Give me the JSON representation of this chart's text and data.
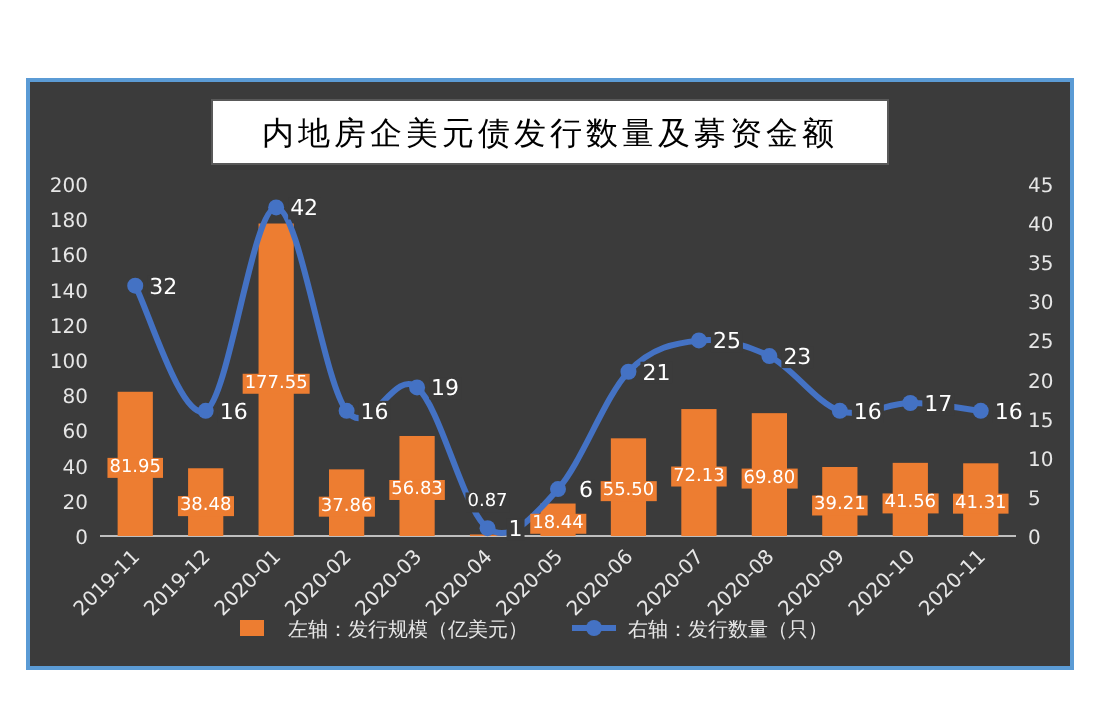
{
  "chart_data": {
    "type": "bar",
    "title": "内地房企美元债发行数量及募资金额",
    "categories": [
      "2019-11",
      "2019-12",
      "2020-01",
      "2020-02",
      "2020-03",
      "2020-04",
      "2020-05",
      "2020-06",
      "2020-07",
      "2020-08",
      "2020-09",
      "2020-10",
      "2020-11"
    ],
    "series": [
      {
        "name": "左轴：发行规模（亿美元）",
        "color": "#ed7d31",
        "values": [
          81.95,
          38.48,
          177.55,
          37.86,
          56.83,
          0.87,
          18.44,
          55.5,
          72.13,
          69.8,
          39.21,
          41.56,
          41.31
        ],
        "value_labels": [
          "81.95",
          "38.48",
          "177.55",
          "37.86",
          "56.83",
          "0.87",
          "18.44",
          "55.50",
          "72.13",
          "69.80",
          "39.21",
          "41.56",
          "41.31"
        ]
      },
      {
        "name": "右轴：发行数量（只）",
        "type": "line",
        "axis": "y2",
        "color": "#4472c4",
        "marker": "circle",
        "values": [
          32,
          16,
          42,
          16,
          19,
          1,
          6,
          21,
          25,
          23,
          16,
          17,
          16
        ]
      }
    ],
    "ylim": [
      0,
      200
    ],
    "yticks": [
      0,
      20,
      40,
      60,
      80,
      100,
      120,
      140,
      160,
      180,
      200
    ],
    "y2lim": [
      0,
      45
    ],
    "y2ticks": [
      0,
      5,
      10,
      15,
      20,
      25,
      30,
      35,
      40,
      45
    ],
    "data_labels": true,
    "legend": "bottom"
  }
}
